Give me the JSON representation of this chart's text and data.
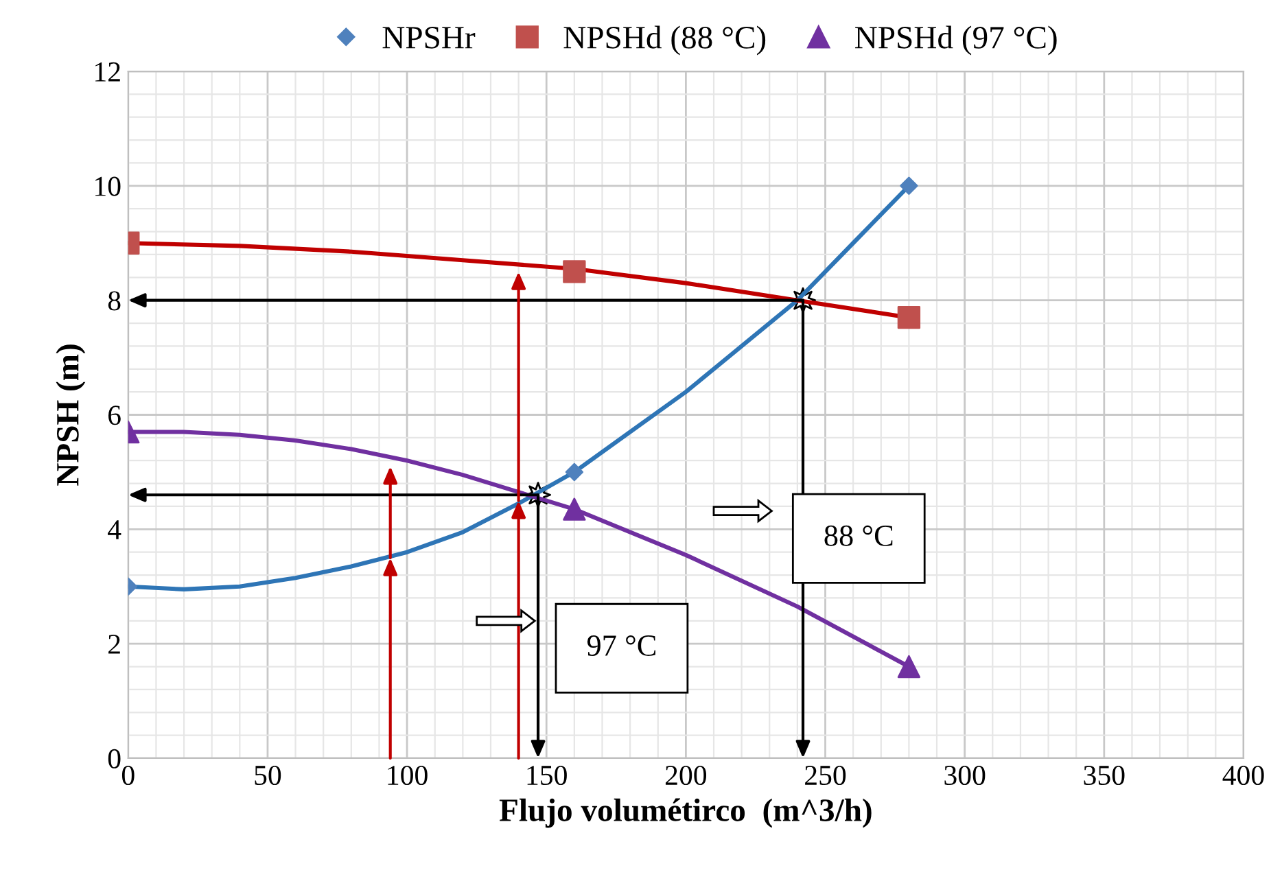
{
  "chart_data": {
    "type": "line",
    "xlabel": "Flujo volumétirco  (m^3/h)",
    "ylabel": "NPSH (m)",
    "x": [
      0,
      160,
      280
    ],
    "series": [
      {
        "color": "#2e75b6",
        "x": [
          0,
          20,
          40,
          60,
          80,
          100,
          120,
          140,
          160,
          180,
          200,
          220,
          240,
          260,
          280
        ],
        "values": [
          3,
          2.95,
          3,
          3.15,
          3.35,
          3.6,
          3.95,
          4.45,
          5,
          5.7,
          6.4,
          7.2,
          8,
          9,
          10
        ]
      },
      {
        "color": "#c00000",
        "x": [
          0,
          40,
          80,
          120,
          160,
          200,
          240,
          280
        ],
        "values": [
          9,
          8.95,
          8.85,
          8.7,
          8.55,
          8.3,
          8,
          7.7
        ]
      },
      {
        "color": "#7030a0",
        "x": [
          0,
          20,
          40,
          60,
          80,
          100,
          120,
          140,
          160,
          200,
          240,
          280
        ],
        "values": [
          5.7,
          5.7,
          5.65,
          5.55,
          5.4,
          5.2,
          4.95,
          4.65,
          4.35,
          3.55,
          2.65,
          1.6
        ]
      },
      {
        "type": "scatter",
        "name": "NPSHr",
        "color": "#4f81bd",
        "marker": "diamond",
        "values": [
          3,
          5,
          10
        ]
      },
      {
        "type": "scatter",
        "name": "NPSHd (88 °C)",
        "color": "#c0504d",
        "marker": "square",
        "values": [
          9,
          8.5,
          7.7
        ]
      },
      {
        "type": "scatter",
        "name": "NPSHd (97 °C)",
        "color": "#7030a0",
        "marker": "triangle",
        "values": [
          5.7,
          4.35,
          1.6
        ]
      }
    ],
    "xlim": [
      0,
      400
    ],
    "xticks": [
      0,
      50,
      100,
      150,
      200,
      250,
      300,
      350,
      400
    ],
    "ylim": [
      0,
      12
    ],
    "yticks": [
      0,
      2,
      4,
      6,
      8,
      10,
      12
    ],
    "grid": true,
    "legend": "top",
    "annotations": [
      "88 °C",
      "97 °C"
    ]
  }
}
